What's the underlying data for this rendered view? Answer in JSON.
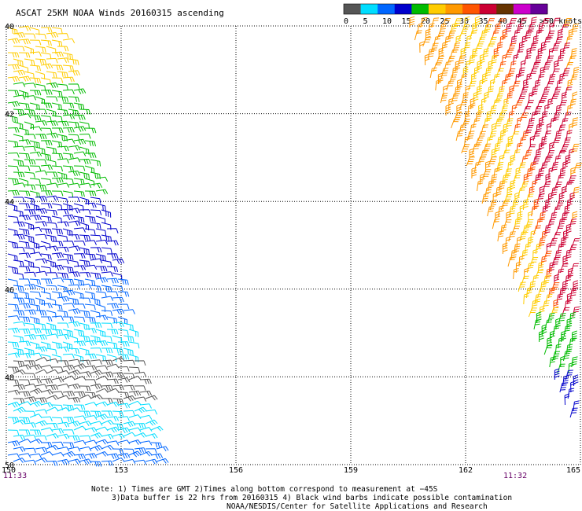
{
  "title": "ASCAT 25KM NOAA Winds 20160315 ascending",
  "legend": {
    "labels": [
      "0",
      "5",
      "10",
      "15",
      "20",
      "25",
      "30",
      "35",
      "40",
      "45",
      ">50 knots"
    ],
    "colors": [
      "#555555",
      "#00ddff",
      "#0066ff",
      "#0000cc",
      "#00bb00",
      "#ffcc00",
      "#ff9900",
      "#ff5500",
      "#cc0033",
      "#663300",
      "#cc00cc",
      "#660099"
    ]
  },
  "axes": {
    "lon_ticks": [
      "150",
      "153",
      "156",
      "159",
      "162",
      "165"
    ],
    "lat_ticks": [
      "40",
      "42",
      "44",
      "46",
      "48",
      "50"
    ],
    "lon_range": [
      150,
      165
    ],
    "lat_range": [
      40,
      50
    ],
    "grid": true
  },
  "times": {
    "left": "11:33",
    "right": "11:32"
  },
  "notes": {
    "line1": "Note: 1) Times are GMT 2)Times along bottom correspond to measurement at −45S",
    "line2": "3)Data buffer is 22 hrs from 20160315 4) Black wind barbs indicate possible contamination",
    "line3": "NOAA/NESDIS/Center for Satellite Applications and Research"
  },
  "swaths": {
    "left": {
      "bands": [
        {
          "lat_from": 40.0,
          "lat_to": 41.2,
          "color": "#ffcc00"
        },
        {
          "lat_from": 41.2,
          "lat_to": 41.8,
          "color": "#00bb00"
        },
        {
          "lat_from": 41.8,
          "lat_to": 43.8,
          "color": "#00bb00"
        },
        {
          "lat_from": 43.8,
          "lat_to": 45.7,
          "color": "#0000cc"
        },
        {
          "lat_from": 45.7,
          "lat_to": 46.7,
          "color": "#0066ff"
        },
        {
          "lat_from": 46.7,
          "lat_to": 47.6,
          "color": "#00ddff"
        },
        {
          "lat_from": 47.6,
          "lat_to": 48.5,
          "color": "#555555"
        },
        {
          "lat_from": 48.5,
          "lat_to": 49.4,
          "color": "#00ddff"
        },
        {
          "lat_from": 49.4,
          "lat_to": 50.0,
          "color": "#0066ff"
        }
      ]
    },
    "right": {
      "bands": [
        {
          "pos_from": 0.0,
          "pos_to": 0.22,
          "color": "#ff9900"
        },
        {
          "pos_from": 0.22,
          "pos_to": 0.45,
          "color": "#ffcc00"
        },
        {
          "pos_from": 0.45,
          "pos_to": 0.55,
          "color": "#ff5500"
        },
        {
          "pos_from": 0.55,
          "pos_to": 0.9,
          "color": "#cc0033"
        },
        {
          "pos_from": 0.9,
          "pos_to": 1.0,
          "color": "#ff9900"
        }
      ],
      "tail_colors": [
        "#00bb00",
        "#0000cc"
      ]
    }
  }
}
